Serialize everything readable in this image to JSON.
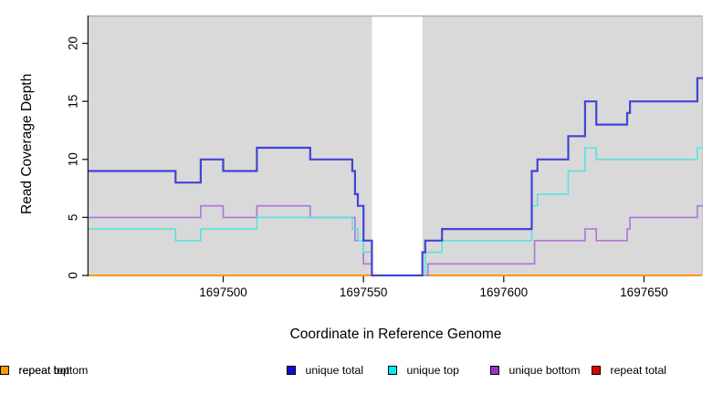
{
  "figure": {
    "background": "#ffffff",
    "plot_background": "#d9d9d9",
    "top_border_color": "#a9a9a9",
    "right_border_color": "#c8c8c8",
    "axis_color": "#1a1a1a",
    "tick_label_color": "#000000"
  },
  "chart_data": {
    "type": "line",
    "subtype": "step-hv",
    "title": "",
    "xlabel": "Coordinate in Reference Genome",
    "ylabel": "Read Coverage Depth",
    "xlim": [
      1697452,
      1697671
    ],
    "ylim": [
      0,
      22.4
    ],
    "x_ticks": [
      1697500,
      1697550,
      1697600,
      1697650
    ],
    "y_ticks": [
      0,
      5,
      10,
      15,
      20
    ],
    "grid": false,
    "legend_position": "bottom",
    "gap_region": {
      "x_start": 1697553,
      "x_end": 1697571,
      "color": "#ffffff"
    },
    "series": [
      {
        "name": "repeat total",
        "color": "#dd0000",
        "legend_color": "#e00000",
        "width": 1.6,
        "points": [
          [
            1697452,
            0
          ],
          [
            1697671,
            0
          ]
        ]
      },
      {
        "name": "repeat top",
        "color": "#f5f500",
        "legend_color": "#ffff00",
        "width": 1.6,
        "points": [
          [
            1697452,
            0
          ],
          [
            1697671,
            0
          ]
        ]
      },
      {
        "name": "repeat bottom",
        "color": "#ff9606",
        "legend_color": "#ff9900",
        "width": 2.1,
        "points": [
          [
            1697452,
            0
          ],
          [
            1697671,
            0
          ]
        ]
      },
      {
        "name": "unique bottom",
        "color": "#ae75da",
        "legend_color": "#9932cc",
        "width": 1.6,
        "points": [
          [
            1697452,
            5
          ],
          [
            1697492,
            6
          ],
          [
            1697500,
            5
          ],
          [
            1697512,
            6
          ],
          [
            1697531,
            5
          ],
          [
            1697547,
            3
          ],
          [
            1697550,
            1
          ],
          [
            1697553,
            0
          ],
          [
            1697573,
            1
          ],
          [
            1697611,
            3
          ],
          [
            1697629,
            4
          ],
          [
            1697633,
            3
          ],
          [
            1697644,
            4
          ],
          [
            1697645,
            5
          ],
          [
            1697669,
            6
          ],
          [
            1697671,
            6
          ]
        ]
      },
      {
        "name": "unique top",
        "color": "#53e4e2",
        "legend_color": "#00eeee",
        "width": 1.6,
        "points": [
          [
            1697452,
            4
          ],
          [
            1697483,
            3
          ],
          [
            1697492,
            4
          ],
          [
            1697512,
            5
          ],
          [
            1697546,
            4
          ],
          [
            1697548,
            3
          ],
          [
            1697550,
            2
          ],
          [
            1697553,
            0
          ],
          [
            1697572,
            2
          ],
          [
            1697578,
            3
          ],
          [
            1697610,
            6
          ],
          [
            1697612,
            7
          ],
          [
            1697623,
            9
          ],
          [
            1697629,
            11
          ],
          [
            1697633,
            10
          ],
          [
            1697669,
            11
          ],
          [
            1697671,
            11
          ]
        ]
      },
      {
        "name": "unique total",
        "color": "#4343d6",
        "legend_color": "#0d0ddb",
        "width": 2.2,
        "points": [
          [
            1697452,
            9
          ],
          [
            1697483,
            8
          ],
          [
            1697492,
            10
          ],
          [
            1697500,
            9
          ],
          [
            1697512,
            11
          ],
          [
            1697531,
            10
          ],
          [
            1697546,
            9
          ],
          [
            1697547,
            7
          ],
          [
            1697548,
            6
          ],
          [
            1697550,
            3
          ],
          [
            1697553,
            0
          ],
          [
            1697571,
            2
          ],
          [
            1697572,
            3
          ],
          [
            1697578,
            4
          ],
          [
            1697610,
            9
          ],
          [
            1697612,
            10
          ],
          [
            1697623,
            12
          ],
          [
            1697629,
            15
          ],
          [
            1697633,
            13
          ],
          [
            1697644,
            14
          ],
          [
            1697645,
            15
          ],
          [
            1697669,
            17
          ],
          [
            1697671,
            17
          ]
        ]
      }
    ]
  },
  "legend": {
    "items": [
      {
        "label": "unique total"
      },
      {
        "label": "unique top"
      },
      {
        "label": "unique bottom"
      },
      {
        "label": "repeat total"
      },
      {
        "label": "repeat top"
      },
      {
        "label": "repeat bottom"
      }
    ]
  }
}
